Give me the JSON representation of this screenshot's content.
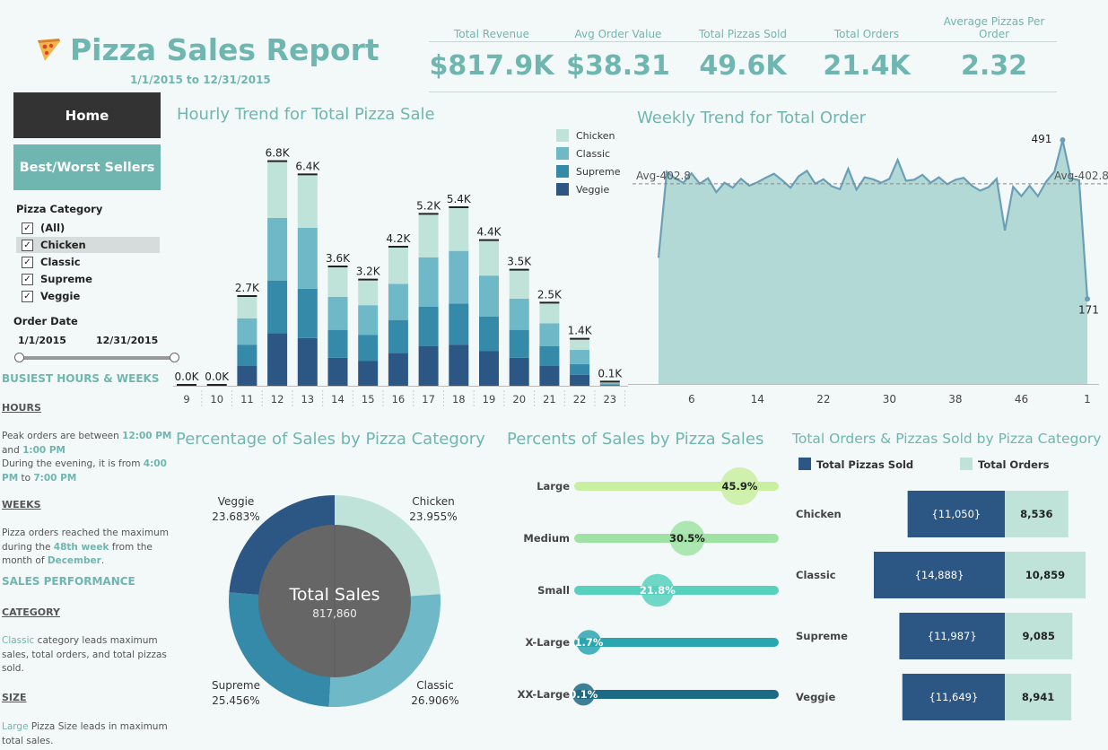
{
  "header": {
    "title": "Pizza Sales Report",
    "icon": "pizza-icon",
    "date_range": "1/1/2015 to 12/31/2015"
  },
  "kpis": [
    {
      "label": "Total Revenue",
      "value": "$817.9K"
    },
    {
      "label": "Avg Order Value",
      "value": "$38.31"
    },
    {
      "label": "Total Pizzas Sold",
      "value": "49.6K"
    },
    {
      "label": "Total Orders",
      "value": "21.4K"
    },
    {
      "label": "Average Pizzas Per Order",
      "value": "2.32"
    }
  ],
  "nav": {
    "home_label": "Home",
    "best_worst_label": "Best/Worst Sellers"
  },
  "filters": {
    "category_label": "Pizza Category",
    "items": [
      {
        "label": "(All)",
        "checked": true,
        "selected": false
      },
      {
        "label": "Chicken",
        "checked": true,
        "selected": true
      },
      {
        "label": "Classic",
        "checked": true,
        "selected": false
      },
      {
        "label": "Supreme",
        "checked": true,
        "selected": false
      },
      {
        "label": "Veggie",
        "checked": true,
        "selected": false
      }
    ],
    "date_label": "Order Date",
    "date_start": "1/1/2015",
    "date_end": "12/31/2015"
  },
  "insights": {
    "busiest_title": "BUSIEST HOURS & WEEKS",
    "hours_head": "HOURS",
    "hours_p1a": "Peak orders are between ",
    "hours_p1b": "12:00 PM",
    "hours_p1c": " and ",
    "hours_p1d": "1:00 PM",
    "hours_p2a": "During the evening, it is from ",
    "hours_p2b": "4:00 PM",
    "hours_p2c": " to ",
    "hours_p2d": "7:00 PM",
    "weeks_head": "WEEKS",
    "weeks_a": "Pizza orders reached the maximum during the ",
    "weeks_b": "48th week",
    "weeks_c": " from the month of ",
    "weeks_d": "December",
    "weeks_e": ".",
    "perf_title": "SALES PERFORMANCE",
    "cat_head": "CATEGORY",
    "cat_a": "Classic",
    "cat_b": " category leads maximum sales, total orders, and total pizzas sold.",
    "size_head": "SIZE",
    "size_a": "Large",
    "size_b": " Pizza Size leads in maximum total sales."
  },
  "colors": {
    "accent": "#6fb6b0",
    "chicken": "#bfe3d8",
    "classic": "#6fb8c8",
    "supreme": "#3589a9",
    "veggie": "#2c5784"
  },
  "chart_data": [
    {
      "type": "bar",
      "stacked": true,
      "title": "Hourly Trend for Total Pizza Sale",
      "categories": [
        "9",
        "10",
        "11",
        "12",
        "13",
        "14",
        "15",
        "16",
        "17",
        "18",
        "19",
        "20",
        "21",
        "22",
        "23"
      ],
      "totals_labels": [
        "0.0K",
        "0.0K",
        "2.7K",
        "6.8K",
        "6.4K",
        "3.6K",
        "3.2K",
        "4.2K",
        "5.2K",
        "5.4K",
        "4.4K",
        "3.5K",
        "2.5K",
        "1.4K",
        "0.1K"
      ],
      "series": [
        {
          "name": "Veggie",
          "values": [
            0,
            0,
            600,
            1600,
            1450,
            850,
            750,
            1000,
            1200,
            1250,
            1050,
            850,
            600,
            330,
            20
          ]
        },
        {
          "name": "Supreme",
          "values": [
            0,
            0,
            650,
            1600,
            1500,
            850,
            800,
            1000,
            1200,
            1250,
            1050,
            850,
            600,
            330,
            20
          ]
        },
        {
          "name": "Classic",
          "values": [
            0,
            0,
            800,
            1900,
            1850,
            1000,
            900,
            1100,
            1500,
            1600,
            1250,
            950,
            700,
            430,
            40
          ]
        },
        {
          "name": "Chicken",
          "values": [
            0,
            0,
            650,
            1700,
            1600,
            900,
            750,
            1100,
            1300,
            1300,
            1050,
            850,
            600,
            310,
            20
          ]
        }
      ],
      "legend": [
        "Chicken",
        "Classic",
        "Supreme",
        "Veggie"
      ],
      "legend_position": "top-right",
      "ylim": [
        0,
        7500
      ]
    },
    {
      "type": "area",
      "title": "Weekly Trend for Total Order",
      "x_ticks": [
        "6",
        "14",
        "22",
        "30",
        "38",
        "46",
        "1"
      ],
      "values": [
        254,
        427,
        414,
        405,
        424,
        403,
        414,
        386,
        405,
        395,
        413,
        399,
        406,
        415,
        423,
        410,
        395,
        418,
        429,
        403,
        412,
        398,
        392,
        433,
        391,
        416,
        412,
        405,
        413,
        451,
        409,
        411,
        421,
        405,
        416,
        402,
        411,
        415,
        399,
        389,
        396,
        413,
        309,
        397,
        378,
        399,
        378,
        407,
        427,
        491,
        414,
        410,
        171
      ],
      "avg_label": "Avg-402.8",
      "avg": 402.8,
      "annotations": [
        "491",
        "171"
      ],
      "ylim": [
        0,
        520
      ]
    },
    {
      "type": "pie",
      "title": "Percentage of Sales by Pizza Category",
      "center_label": "Total Sales",
      "center_value": "817,860",
      "slices": [
        {
          "name": "Chicken",
          "value": 23.955,
          "label": "23.955%"
        },
        {
          "name": "Classic",
          "value": 26.906,
          "label": "26.906%"
        },
        {
          "name": "Supreme",
          "value": 25.456,
          "label": "25.456%"
        },
        {
          "name": "Veggie",
          "value": 23.683,
          "label": "23.683%"
        }
      ]
    },
    {
      "type": "bar",
      "title": "Percents of Sales by Pizza Sales",
      "categories": [
        "Large",
        "Medium",
        "Small",
        "X-Large",
        "XX-Large"
      ],
      "values": [
        45.9,
        30.5,
        21.8,
        1.7,
        0.1
      ],
      "labels": [
        "45.9%",
        "30.5%",
        "21.8%",
        "1.7%",
        "0.1%"
      ],
      "colors": [
        "#c8f0a0",
        "#9fe3a4",
        "#56d1bd",
        "#2aa6b1",
        "#1c6a86"
      ]
    },
    {
      "type": "bar",
      "title": "Total Orders & Pizzas Sold by Pizza Category",
      "categories": [
        "Chicken",
        "Classic",
        "Supreme",
        "Veggie"
      ],
      "series": [
        {
          "name": "Total Pizzas Sold",
          "values": [
            11050,
            14888,
            11987,
            11649
          ],
          "labels": [
            "{11,050}",
            "{14,888}",
            "{11,987}",
            "{11,649}"
          ]
        },
        {
          "name": "Total Orders",
          "values": [
            8536,
            10859,
            9085,
            8941
          ],
          "labels": [
            "8,536",
            "10,859",
            "9,085",
            "8,941"
          ]
        }
      ]
    }
  ]
}
